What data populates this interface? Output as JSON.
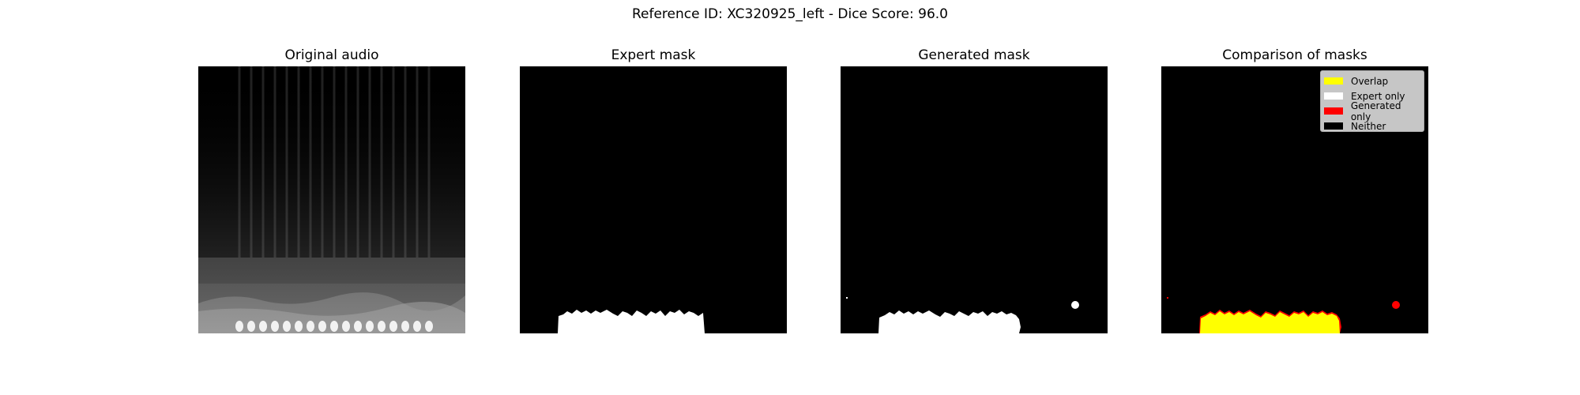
{
  "suptitle": "Reference ID: XC320925_left - Dice Score: 96.0",
  "panels": [
    {
      "title": "Original audio"
    },
    {
      "title": "Expert mask"
    },
    {
      "title": "Generated mask"
    },
    {
      "title": "Comparison of masks"
    }
  ],
  "legend": [
    {
      "label": "Overlap",
      "color": "#ffff00"
    },
    {
      "label": "Expert only",
      "color": "#ffffff"
    },
    {
      "label": "Generated only",
      "color": "#ff0000"
    },
    {
      "label": "Neither",
      "color": "#000000"
    }
  ]
}
